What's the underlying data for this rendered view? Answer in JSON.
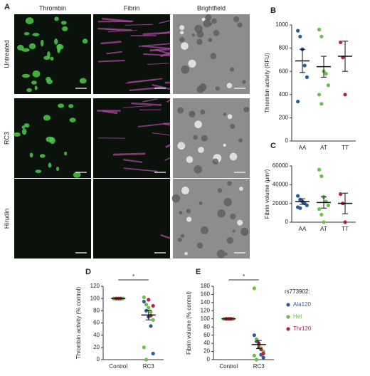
{
  "figure": {
    "letter": "A",
    "columns": [
      "Thrombin",
      "Fibrin",
      "Brightfield"
    ],
    "rows": [
      "Untreated",
      "RC3",
      "Hirudin"
    ]
  },
  "chart_data": [
    {
      "type": "strip",
      "letter": "B",
      "ylabel": "Thrombin activity (RFU)",
      "categories": [
        "AA",
        "AT",
        "TT"
      ],
      "colors": [
        "#2b5d9b",
        "#6cbf4a",
        "#b5263a"
      ],
      "values": [
        [
          950,
          900,
          790,
          650,
          550,
          340
        ],
        [
          960,
          900,
          600,
          580,
          480,
          400,
          320
        ],
        [
          850,
          720,
          400
        ]
      ],
      "means": [
        690,
        640,
        730
      ],
      "errors": [
        100,
        90,
        130
      ],
      "ylim": [
        0,
        1000
      ],
      "yticks": [
        0,
        200,
        400,
        600,
        800,
        1000
      ]
    },
    {
      "type": "strip",
      "letter": "C",
      "ylabel": "Fibrin volume (μm³)",
      "categories": [
        "AA",
        "AT",
        "TT"
      ],
      "colors": [
        "#2b5d9b",
        "#6cbf4a",
        "#b5263a"
      ],
      "values": [
        [
          28000,
          24000,
          22000,
          20000,
          18000,
          16000,
          15000
        ],
        [
          56000,
          49000,
          27000,
          22000,
          18000,
          14000,
          8000,
          0
        ],
        [
          30000,
          20000,
          0
        ]
      ],
      "means": [
        22000,
        21000,
        20000
      ],
      "errors": [
        3000,
        6000,
        11000
      ],
      "ylim": [
        0,
        60000
      ],
      "yticks": [
        0,
        20000,
        40000,
        60000
      ]
    },
    {
      "type": "strip",
      "letter": "D",
      "ylabel": "Thrombin activity (% control)",
      "categories": [
        "Control",
        "RC3"
      ],
      "annotation": "*",
      "series": [
        {
          "color": "#2b5d9b",
          "values": [
            [
              100,
              100,
              100,
              100,
              100
            ],
            [
              95,
              80,
              70,
              55,
              10
            ]
          ]
        },
        {
          "color": "#6cbf4a",
          "values": [
            [
              100,
              100,
              100,
              100,
              100,
              100
            ],
            [
              102,
              90,
              85,
              78,
              65,
              20,
              0
            ]
          ]
        },
        {
          "color": "#b5263a",
          "values": [
            [
              100,
              100,
              100
            ],
            [
              98,
              72,
              88
            ]
          ]
        }
      ],
      "means": [
        100,
        73
      ],
      "errors": [
        0,
        8
      ],
      "ylim": [
        0,
        120
      ],
      "yticks": [
        0,
        20,
        40,
        60,
        80,
        100,
        120
      ]
    },
    {
      "type": "strip",
      "letter": "E",
      "ylabel": "Fibrin volume (% control)",
      "categories": [
        "Control",
        "RC3"
      ],
      "annotation": "*",
      "legend_title": "rs773902:",
      "series": [
        {
          "name": "Ala120",
          "color": "#2b5d9b",
          "values": [
            [
              100,
              100,
              100,
              100,
              100
            ],
            [
              60,
              45,
              30,
              12,
              5
            ]
          ]
        },
        {
          "name": "Het",
          "color": "#6cbf4a",
          "values": [
            [
              100,
              100,
              100,
              100,
              100,
              100
            ],
            [
              175,
              50,
              35,
              28,
              20,
              10,
              0
            ]
          ]
        },
        {
          "name": "Thr120",
          "color": "#b5263a",
          "values": [
            [
              100,
              100,
              100
            ],
            [
              40,
              25,
              15
            ]
          ]
        }
      ],
      "means": [
        100,
        37
      ],
      "errors": [
        0,
        10
      ],
      "ylim": [
        0,
        180
      ],
      "yticks": [
        0,
        20,
        40,
        60,
        80,
        100,
        120,
        140,
        160,
        180
      ]
    }
  ]
}
